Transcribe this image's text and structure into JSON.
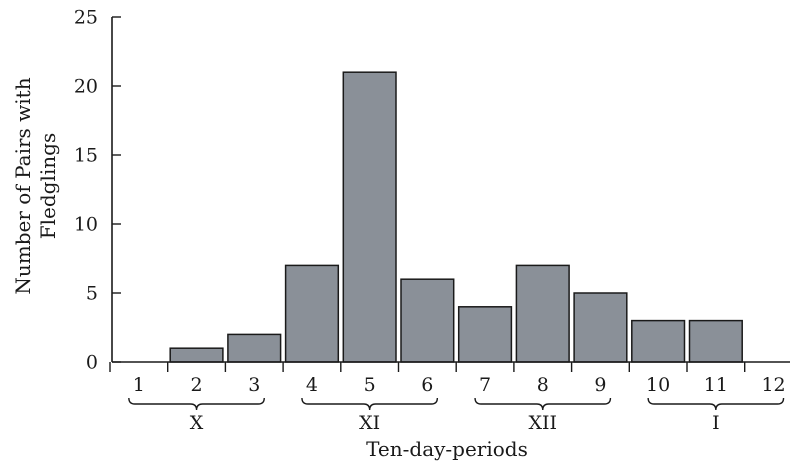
{
  "chart_data": {
    "type": "bar",
    "title": "",
    "xlabel": "Ten-day-periods",
    "ylabel": [
      "Number of Pairs with",
      "Fledglings"
    ],
    "ylim": [
      0,
      25
    ],
    "yticks": [
      "0",
      "5",
      "10",
      "15",
      "20",
      "25"
    ],
    "categories": [
      "1",
      "2",
      "3",
      "4",
      "5",
      "6",
      "7",
      "8",
      "9",
      "10",
      "11",
      "12"
    ],
    "values": [
      0,
      1,
      2,
      7,
      21,
      6,
      4,
      7,
      5,
      3,
      3,
      0
    ],
    "groups": [
      {
        "label": "X",
        "from": 1,
        "to": 3
      },
      {
        "label": "XI",
        "from": 4,
        "to": 6
      },
      {
        "label": "XII",
        "from": 7,
        "to": 9
      },
      {
        "label": "I",
        "from": 10,
        "to": 12
      }
    ],
    "bar_color": "#8a9098",
    "bar_edge_color": "#1a1a1a",
    "grid": false,
    "legend": "none"
  }
}
